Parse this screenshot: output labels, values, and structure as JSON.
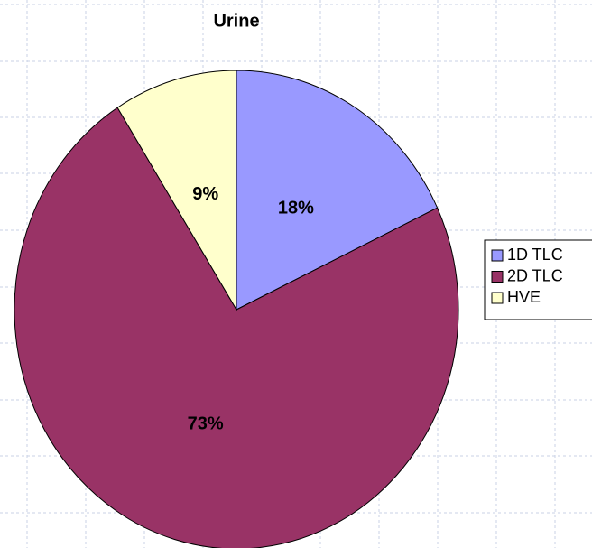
{
  "chart_data": {
    "type": "pie",
    "title": "Urine",
    "categories": [
      "1D TLC",
      "2D TLC",
      "HVE"
    ],
    "values": [
      18,
      73,
      9
    ],
    "value_labels": [
      "18%",
      "73%",
      "9%"
    ],
    "colors": [
      "#9999ff",
      "#993366",
      "#ffffcc"
    ],
    "legend": "right"
  }
}
